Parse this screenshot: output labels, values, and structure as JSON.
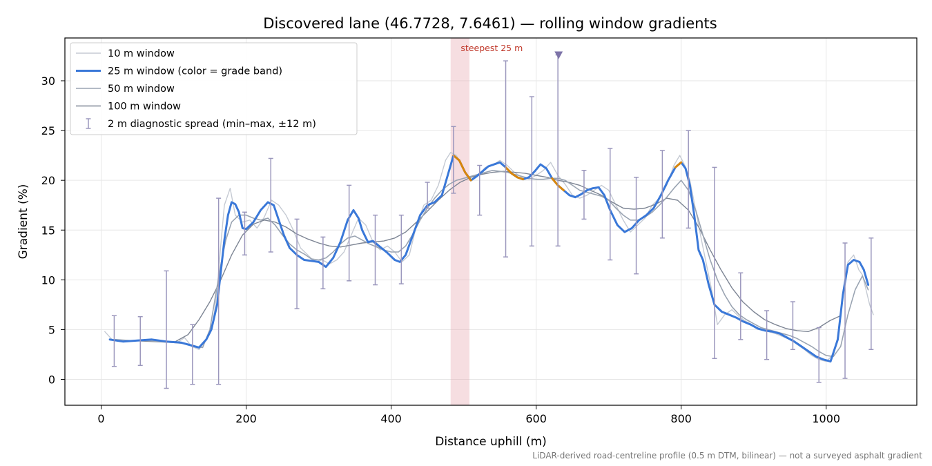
{
  "chart_data": {
    "type": "line",
    "title": "Discovered lane (46.7728, 7.6461) — rolling window gradients",
    "xlabel": "Distance uphill (m)",
    "ylabel": "Gradient (%)",
    "xlim": [
      -50,
      1125
    ],
    "ylim": [
      -2.6,
      34.3
    ],
    "xticks": [
      0,
      200,
      400,
      600,
      800,
      1000
    ],
    "yticks": [
      0,
      5,
      10,
      15,
      20,
      25,
      30
    ],
    "grid": true,
    "legend_position": "top-left",
    "footnote": "LiDAR-derived road-centreline profile (0.5 m DTM, bilinear) — not a surveyed asphalt gradient",
    "steepest_annotation": {
      "label": "steepest 25 m",
      "x_start": 482,
      "x_end": 508,
      "marker_x": 631,
      "marker_y": 32.6
    },
    "colors": {
      "w10": "#c5cad3",
      "w25": "#3a78d8",
      "w25_steep": "#d9860b",
      "w50": "#9aa4b2",
      "w100": "#7d8594",
      "spread": "#9b97bd",
      "highlight": "#e8a7b0"
    },
    "legend": [
      {
        "label": "10 m window",
        "kind": "line",
        "color": "#c5cad3"
      },
      {
        "label": "25 m window (color = grade band)",
        "kind": "line",
        "color": "#3a78d8"
      },
      {
        "label": "50 m window",
        "kind": "line",
        "color": "#9aa4b2"
      },
      {
        "label": "100 m window",
        "kind": "line",
        "color": "#7d8594"
      },
      {
        "label": "2 m diagnostic spread (min–max, ±12 m)",
        "kind": "errorbar",
        "color": "#9b97bd"
      }
    ],
    "series": [
      {
        "name": "10 m window",
        "x": [
          5,
          15,
          30,
          50,
          70,
          90,
          105,
          115,
          125,
          135,
          145,
          155,
          160,
          165,
          170,
          178,
          185,
          195,
          205,
          215,
          225,
          235,
          245,
          255,
          265,
          275,
          285,
          295,
          305,
          315,
          325,
          335,
          345,
          355,
          365,
          375,
          385,
          395,
          405,
          415,
          425,
          435,
          445,
          455,
          465,
          475,
          482,
          490,
          497,
          505,
          512,
          520,
          530,
          540,
          550,
          560,
          570,
          580,
          590,
          600,
          610,
          620,
          630,
          640,
          650,
          660,
          670,
          680,
          690,
          700,
          710,
          720,
          730,
          740,
          750,
          760,
          770,
          780,
          790,
          798,
          805,
          812,
          820,
          828,
          835,
          842,
          850,
          860,
          870,
          880,
          890,
          900,
          910,
          920,
          930,
          940,
          950,
          960,
          970,
          980,
          990,
          1000,
          1010,
          1015,
          1020,
          1025,
          1030,
          1038,
          1045,
          1050,
          1055,
          1060,
          1065
        ],
        "y": [
          4.8,
          4.0,
          3.8,
          3.9,
          4.0,
          3.8,
          3.7,
          4.2,
          3.3,
          3.0,
          4.0,
          6.0,
          9.0,
          13.5,
          17.5,
          19.2,
          16.5,
          15.8,
          16.0,
          15.2,
          16.3,
          18.0,
          17.5,
          16.5,
          15.0,
          13.2,
          12.5,
          11.8,
          12.0,
          11.6,
          12.0,
          12.8,
          14.5,
          16.2,
          15.5,
          13.8,
          13.0,
          13.4,
          12.8,
          11.8,
          12.5,
          15.5,
          17.5,
          18.0,
          19.5,
          22.0,
          22.8,
          22.5,
          21.5,
          20.3,
          20.0,
          20.5,
          21.3,
          21.5,
          22.0,
          21.5,
          20.8,
          20.3,
          20.1,
          20.5,
          21.0,
          21.8,
          20.5,
          19.6,
          18.5,
          18.2,
          18.5,
          19.0,
          19.5,
          19.0,
          17.5,
          16.0,
          14.8,
          15.5,
          16.2,
          17.5,
          18.2,
          19.5,
          21.5,
          22.5,
          21.5,
          20.0,
          17.0,
          14.0,
          11.5,
          9.0,
          5.5,
          6.5,
          7.0,
          6.3,
          5.8,
          5.4,
          5.0,
          4.8,
          4.6,
          4.3,
          4.0,
          3.5,
          3.0,
          2.4,
          2.0,
          1.8,
          2.5,
          4.0,
          6.5,
          9.5,
          11.8,
          12.5,
          11.0,
          10.5,
          9.0,
          7.5,
          6.5
        ]
      },
      {
        "name": "25 m window",
        "x": [
          12,
          30,
          50,
          70,
          90,
          110,
          125,
          135,
          145,
          152,
          160,
          165,
          170,
          175,
          180,
          185,
          190,
          195,
          200,
          210,
          220,
          230,
          238,
          245,
          252,
          260,
          270,
          280,
          290,
          300,
          310,
          320,
          330,
          340,
          348,
          355,
          360,
          368,
          375,
          385,
          395,
          405,
          412,
          420,
          430,
          440,
          450,
          460,
          470,
          478,
          486,
          494,
          502,
          510,
          518,
          526,
          534,
          542,
          550,
          558,
          566,
          574,
          582,
          590,
          598,
          606,
          614,
          622,
          630,
          638,
          646,
          654,
          662,
          670,
          678,
          686,
          694,
          702,
          712,
          722,
          732,
          742,
          752,
          762,
          772,
          782,
          792,
          800,
          806,
          812,
          818,
          824,
          830,
          838,
          846,
          856,
          866,
          876,
          886,
          896,
          906,
          916,
          926,
          936,
          946,
          956,
          966,
          976,
          986,
          996,
          1006,
          1016,
          1023,
          1030,
          1038,
          1046,
          1052,
          1058
        ],
        "y": [
          4.0,
          3.8,
          3.9,
          4.0,
          3.8,
          3.7,
          3.4,
          3.2,
          4.0,
          5.0,
          7.5,
          10.8,
          14.0,
          16.5,
          17.8,
          17.6,
          16.8,
          15.2,
          15.1,
          15.8,
          17.0,
          17.8,
          17.5,
          16.0,
          14.5,
          13.2,
          12.5,
          12.0,
          11.9,
          11.8,
          11.3,
          12.2,
          13.8,
          16.0,
          17.0,
          16.2,
          15.0,
          13.8,
          13.9,
          13.3,
          12.7,
          12.0,
          11.8,
          12.5,
          14.5,
          16.5,
          17.5,
          17.8,
          18.5,
          20.5,
          22.5,
          22.0,
          20.8,
          20.0,
          20.4,
          20.9,
          21.4,
          21.6,
          21.8,
          21.3,
          20.7,
          20.3,
          20.1,
          20.3,
          20.9,
          21.6,
          21.2,
          20.2,
          19.5,
          19.0,
          18.5,
          18.3,
          18.6,
          19.0,
          19.2,
          19.3,
          18.5,
          17.0,
          15.5,
          14.8,
          15.2,
          16.0,
          16.5,
          17.2,
          18.5,
          20.0,
          21.3,
          21.8,
          21.2,
          19.5,
          16.5,
          13.0,
          12.0,
          9.5,
          7.5,
          6.8,
          6.5,
          6.2,
          5.8,
          5.5,
          5.1,
          4.9,
          4.8,
          4.6,
          4.2,
          3.8,
          3.3,
          2.8,
          2.3,
          2.0,
          1.8,
          4.0,
          8.5,
          11.5,
          12.0,
          11.8,
          11.0,
          9.5
        ],
        "steep_segments": [
          [
            486,
            510
          ],
          [
            552,
            582
          ],
          [
            620,
            640
          ],
          [
            785,
            805
          ]
        ]
      },
      {
        "name": "50 m window",
        "x": [
          20,
          40,
          60,
          80,
          100,
          115,
          130,
          140,
          150,
          158,
          165,
          172,
          180,
          190,
          200,
          210,
          220,
          230,
          240,
          250,
          260,
          270,
          280,
          290,
          300,
          310,
          320,
          330,
          340,
          350,
          360,
          370,
          380,
          390,
          400,
          410,
          420,
          430,
          440,
          450,
          460,
          470,
          480,
          490,
          500,
          510,
          520,
          530,
          540,
          550,
          560,
          570,
          580,
          590,
          600,
          610,
          620,
          630,
          640,
          650,
          660,
          670,
          680,
          690,
          700,
          710,
          720,
          730,
          740,
          750,
          760,
          770,
          780,
          790,
          800,
          810,
          820,
          830,
          840,
          850,
          860,
          870,
          880,
          890,
          900,
          910,
          920,
          930,
          940,
          950,
          960,
          970,
          980,
          990,
          1000,
          1010,
          1020,
          1030,
          1040,
          1050,
          1058
        ],
        "y": [
          4.0,
          3.9,
          3.9,
          3.8,
          3.7,
          3.6,
          3.3,
          3.2,
          5.0,
          8.5,
          11.5,
          14.0,
          15.8,
          16.5,
          16.5,
          16.2,
          16.0,
          16.2,
          15.5,
          14.5,
          13.6,
          13.0,
          12.6,
          12.1,
          12.0,
          12.2,
          12.8,
          13.6,
          14.2,
          14.4,
          14.0,
          13.6,
          13.3,
          13.0,
          12.8,
          12.8,
          13.4,
          14.6,
          16.0,
          17.2,
          18.2,
          19.0,
          19.6,
          20.0,
          20.2,
          20.4,
          20.6,
          20.8,
          21.0,
          20.9,
          20.8,
          20.6,
          20.4,
          20.2,
          20.1,
          20.1,
          20.2,
          20.2,
          20.0,
          19.5,
          19.0,
          18.8,
          18.6,
          18.4,
          18.0,
          17.2,
          16.5,
          16.0,
          16.0,
          16.3,
          16.8,
          17.5,
          18.3,
          19.2,
          20.0,
          19.0,
          17.0,
          14.5,
          12.0,
          10.0,
          8.5,
          7.3,
          6.5,
          6.0,
          5.6,
          5.2,
          5.0,
          4.8,
          4.6,
          4.4,
          4.1,
          3.7,
          3.3,
          2.8,
          2.4,
          2.3,
          3.3,
          6.5,
          9.0,
          10.4,
          9.0
        ]
      },
      {
        "name": "100 m window",
        "x": [
          40,
          70,
          100,
          120,
          135,
          150,
          165,
          180,
          195,
          210,
          225,
          240,
          255,
          270,
          285,
          300,
          315,
          330,
          345,
          360,
          375,
          390,
          405,
          420,
          435,
          450,
          465,
          480,
          495,
          510,
          525,
          540,
          555,
          570,
          585,
          600,
          615,
          630,
          645,
          660,
          675,
          690,
          705,
          720,
          735,
          750,
          765,
          780,
          795,
          810,
          825,
          840,
          855,
          870,
          885,
          900,
          915,
          930,
          945,
          960,
          975,
          990,
          1005,
          1020
        ],
        "y": [
          3.9,
          3.8,
          3.7,
          4.5,
          6.0,
          7.8,
          10.0,
          12.5,
          14.5,
          15.6,
          16.0,
          15.8,
          15.3,
          14.6,
          14.1,
          13.7,
          13.4,
          13.3,
          13.5,
          13.7,
          13.8,
          13.9,
          14.2,
          14.8,
          15.8,
          16.9,
          18.0,
          19.0,
          19.8,
          20.3,
          20.6,
          20.8,
          20.9,
          20.8,
          20.7,
          20.5,
          20.3,
          20.0,
          19.8,
          19.5,
          19.0,
          18.5,
          17.8,
          17.2,
          17.1,
          17.2,
          17.6,
          18.2,
          18.0,
          17.0,
          15.2,
          13.0,
          11.0,
          9.2,
          7.8,
          6.8,
          6.0,
          5.5,
          5.1,
          4.9,
          4.8,
          5.2,
          5.9,
          6.4
        ]
      }
    ],
    "error_bars": [
      {
        "x": 18,
        "min": 1.3,
        "max": 6.4
      },
      {
        "x": 54,
        "min": 1.4,
        "max": 6.3
      },
      {
        "x": 90,
        "min": -0.9,
        "max": 10.9
      },
      {
        "x": 126,
        "min": -0.5,
        "max": 5.5
      },
      {
        "x": 162,
        "min": -0.5,
        "max": 18.2
      },
      {
        "x": 198,
        "min": 12.5,
        "max": 16.8
      },
      {
        "x": 234,
        "min": 12.8,
        "max": 22.2
      },
      {
        "x": 270,
        "min": 7.1,
        "max": 16.1
      },
      {
        "x": 306,
        "min": 9.1,
        "max": 14.3
      },
      {
        "x": 342,
        "min": 9.9,
        "max": 19.5
      },
      {
        "x": 378,
        "min": 9.5,
        "max": 16.5
      },
      {
        "x": 414,
        "min": 9.6,
        "max": 16.5
      },
      {
        "x": 450,
        "min": 17.2,
        "max": 19.8
      },
      {
        "x": 486,
        "min": 18.7,
        "max": 25.4
      },
      {
        "x": 522,
        "min": 16.5,
        "max": 21.5
      },
      {
        "x": 558,
        "min": 12.3,
        "max": 32.0
      },
      {
        "x": 594,
        "min": 13.4,
        "max": 28.4
      },
      {
        "x": 630,
        "min": 13.4,
        "max": 32.6
      },
      {
        "x": 666,
        "min": 16.1,
        "max": 21.0
      },
      {
        "x": 702,
        "min": 12.0,
        "max": 23.2
      },
      {
        "x": 738,
        "min": 10.6,
        "max": 20.3
      },
      {
        "x": 774,
        "min": 14.2,
        "max": 23.0
      },
      {
        "x": 810,
        "min": 15.2,
        "max": 25.0
      },
      {
        "x": 846,
        "min": 2.1,
        "max": 21.3
      },
      {
        "x": 882,
        "min": 4.0,
        "max": 10.7
      },
      {
        "x": 918,
        "min": 2.0,
        "max": 6.9
      },
      {
        "x": 954,
        "min": 3.0,
        "max": 7.8
      },
      {
        "x": 990,
        "min": -0.3,
        "max": 5.2
      },
      {
        "x": 1026,
        "min": 0.1,
        "max": 13.7
      },
      {
        "x": 1062,
        "min": 3.0,
        "max": 14.2
      }
    ]
  }
}
